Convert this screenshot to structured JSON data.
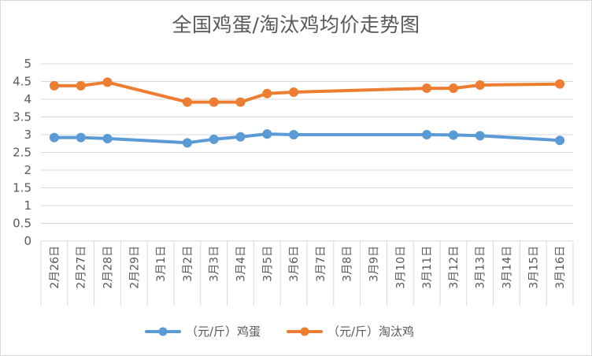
{
  "chart_data": {
    "type": "line",
    "title": "全国鸡蛋/淘汰鸡均价走势图",
    "xlabel": "",
    "ylabel": "",
    "ylim": [
      0,
      5
    ],
    "yticks": [
      "0",
      "0.5",
      "1",
      "1.5",
      "2",
      "2.5",
      "3",
      "3.5",
      "4",
      "4.5",
      "5"
    ],
    "categories": [
      "2月26日",
      "2月27日",
      "2月28日",
      "2月29日",
      "3月1日",
      "3月2日",
      "3月3日",
      "3月4日",
      "3月5日",
      "3月6日",
      "3月7日",
      "3月8日",
      "3月9日",
      "3月10日",
      "3月11日",
      "3月12日",
      "3月13日",
      "3月14日",
      "3月15日",
      "3月16日"
    ],
    "series": [
      {
        "name": "（元/斤）鸡蛋",
        "color": "#5b9bd5",
        "values": [
          2.92,
          2.92,
          2.89,
          null,
          null,
          2.77,
          2.87,
          2.94,
          3.02,
          3.0,
          null,
          null,
          null,
          null,
          3.0,
          2.99,
          2.97,
          null,
          null,
          2.84
        ]
      },
      {
        "name": "（元/斤）淘汰鸡",
        "color": "#ed7d31",
        "values": [
          4.38,
          4.38,
          4.48,
          null,
          null,
          3.92,
          3.92,
          3.92,
          4.16,
          4.2,
          null,
          null,
          null,
          null,
          4.31,
          4.31,
          4.4,
          null,
          null,
          4.43
        ]
      }
    ],
    "grid": true,
    "legend_position": "bottom"
  }
}
